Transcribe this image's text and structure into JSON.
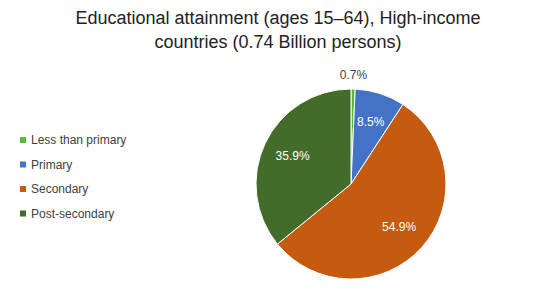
{
  "chart_data": {
    "type": "pie",
    "title": "Educational attainment (ages 15–64), High-income countries (0.74 Billion persons)",
    "categories": [
      "Less than primary",
      "Primary",
      "Secondary",
      "Post-secondary"
    ],
    "values": [
      0.7,
      8.5,
      54.9,
      35.9
    ],
    "value_labels": [
      "0.7%",
      "8.5%",
      "54.9%",
      "35.9%"
    ],
    "colors": [
      "#5cb83a",
      "#4472c4",
      "#c55a11",
      "#436b2a"
    ],
    "data_labels": true,
    "legend": "left"
  }
}
